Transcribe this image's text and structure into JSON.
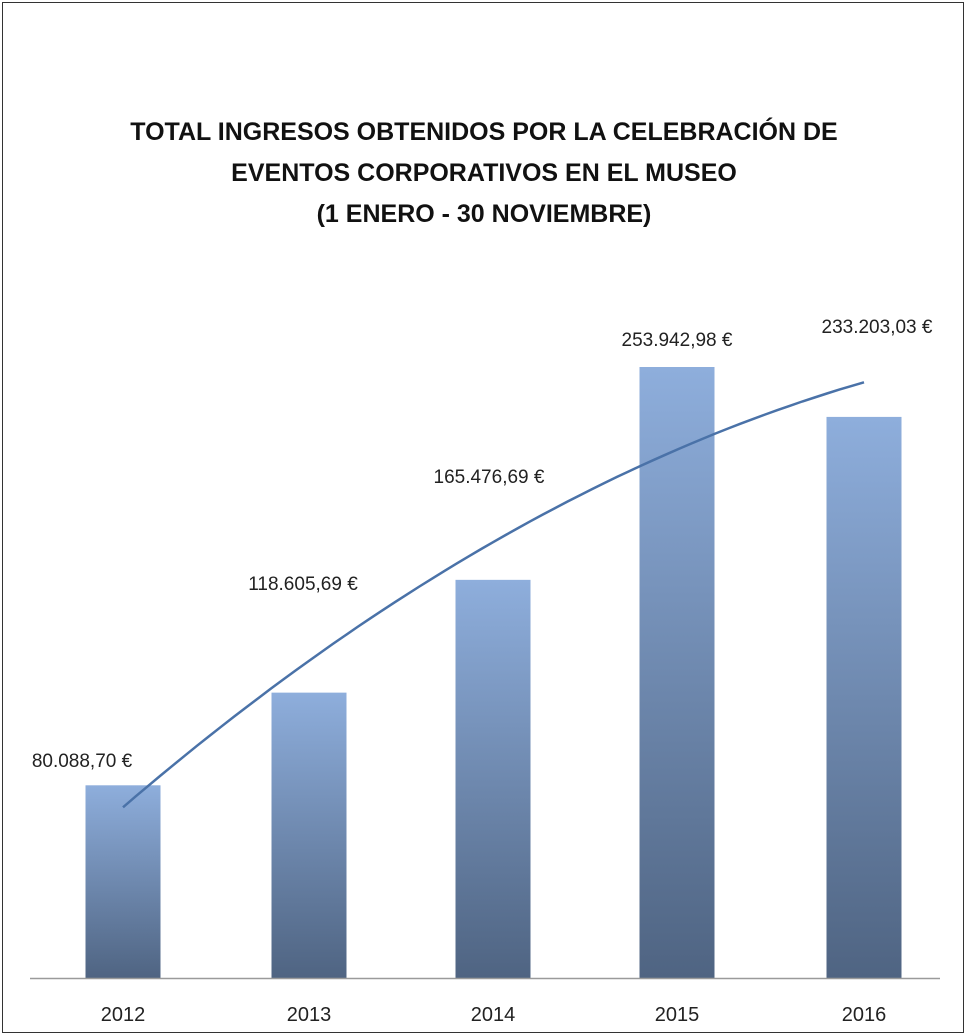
{
  "chart_data": {
    "type": "bar",
    "title_lines": [
      "TOTAL INGRESOS OBTENIDOS POR LA CELEBRACIÓN DE",
      "EVENTOS CORPORATIVOS EN EL MUSEO",
      "(1 ENERO - 30 NOVIEMBRE)"
    ],
    "categories": [
      "2012",
      "2013",
      "2014",
      "2015",
      "2016"
    ],
    "values": [
      80088.7,
      118605.69,
      165476.69,
      253942.98,
      233203.03
    ],
    "data_labels": [
      "80.088,70 €",
      "118.605,69 €",
      "165.476,69 €",
      "253.942,98 €",
      "233.203,03 €"
    ],
    "ylim": [
      0,
      253942.98
    ],
    "trendline": {
      "type": "polynomial",
      "color": "#4a72a8"
    },
    "bar_gradient": {
      "top": "#8eaedc",
      "bottom": "#4f6482"
    },
    "grid": false,
    "legend": "none",
    "axis_color": "#9a9a9a"
  }
}
